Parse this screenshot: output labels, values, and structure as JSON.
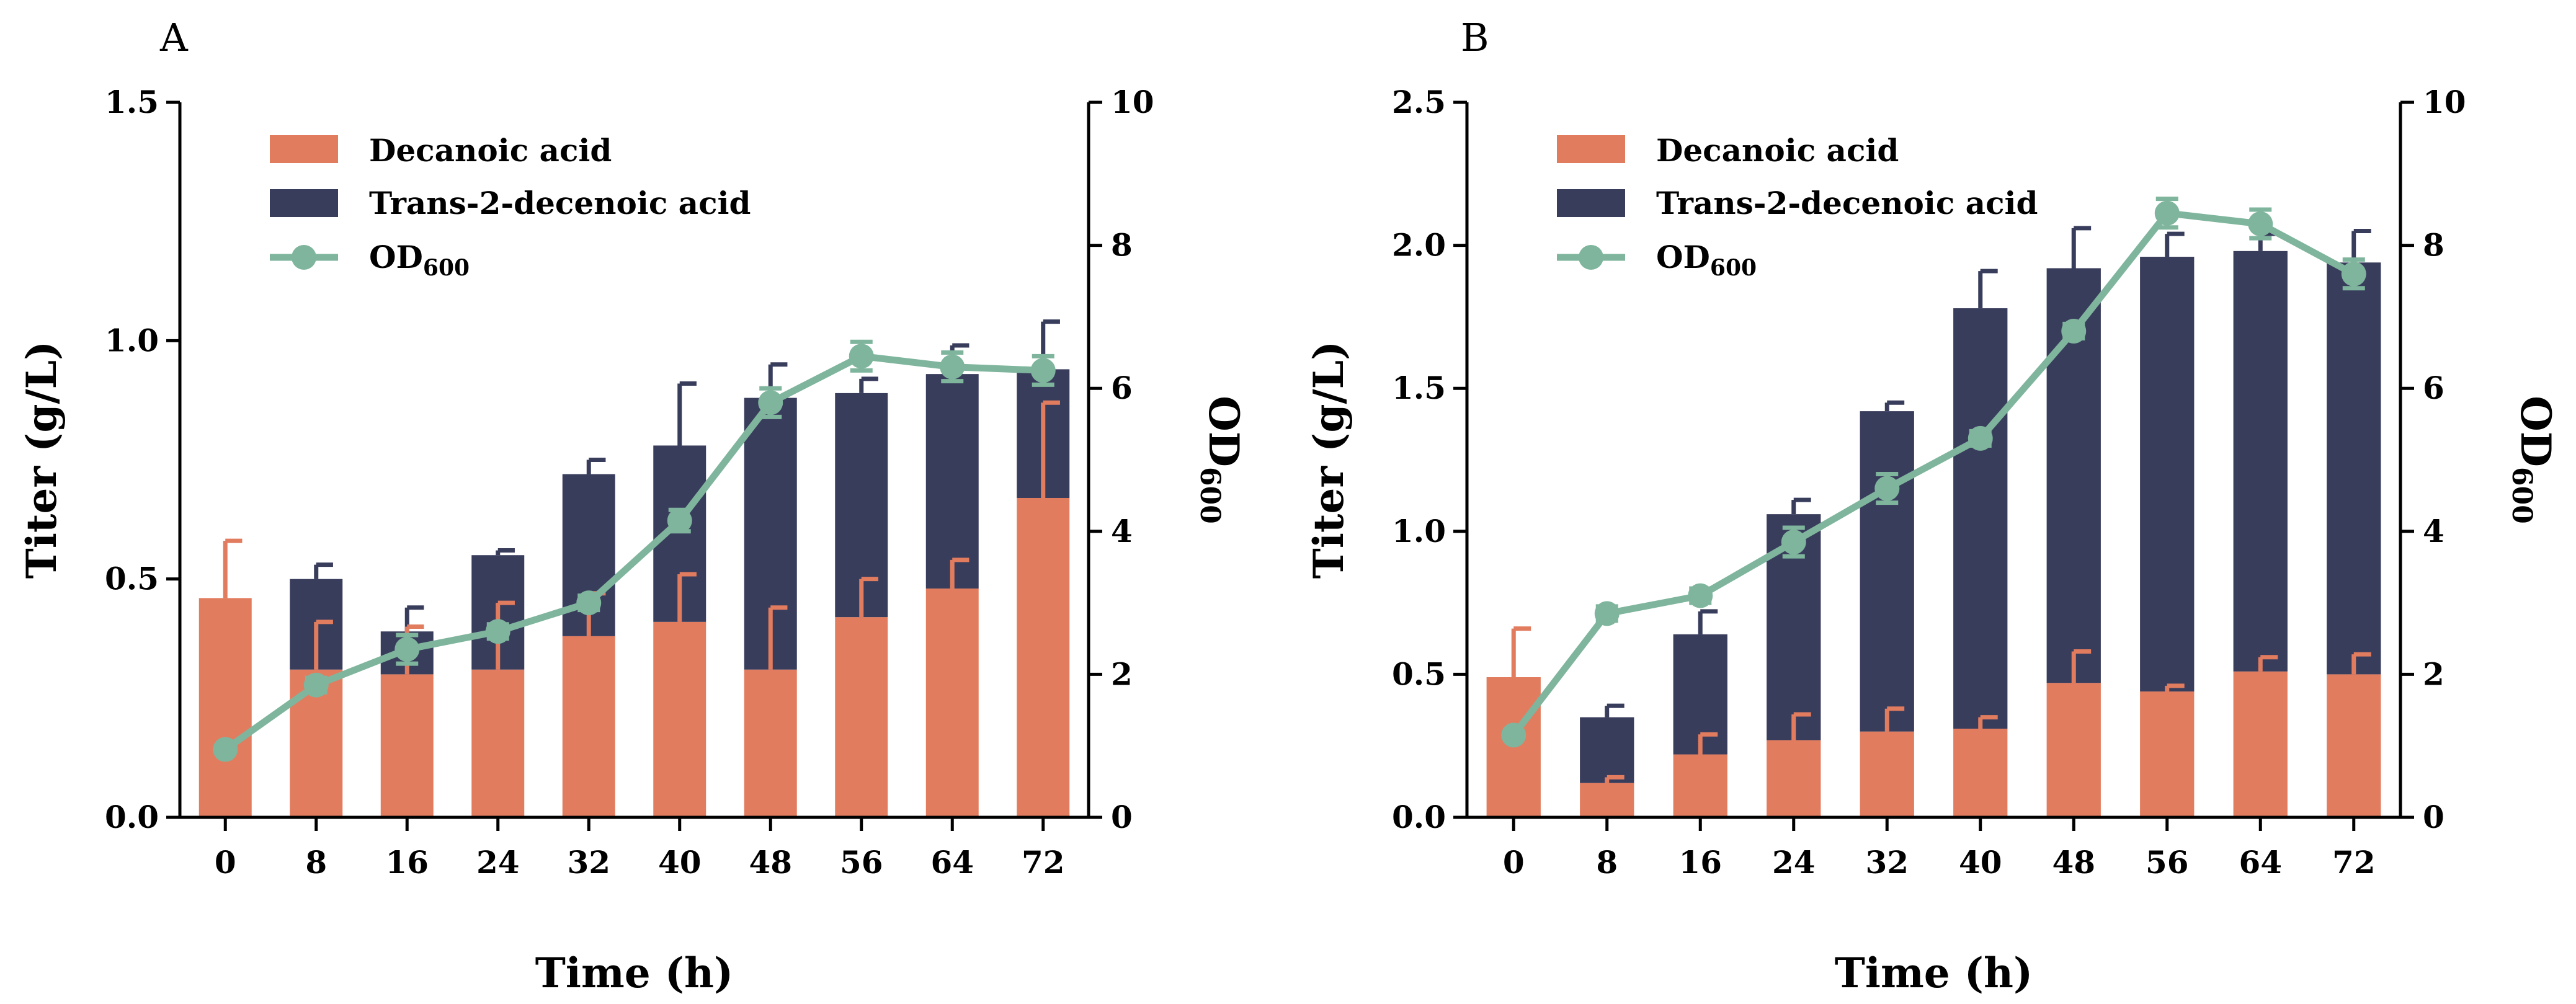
{
  "chart_data": [
    {
      "type": "bar",
      "panel_label": "A",
      "stacked": true,
      "categories": [
        "0",
        "8",
        "16",
        "24",
        "32",
        "40",
        "48",
        "56",
        "64",
        "72"
      ],
      "xlabel": "Time (h)",
      "ylabel": "Titer (g/L)",
      "y2label": "OD",
      "y2label_sub": "600",
      "ylim": [
        0,
        1.5
      ],
      "yticks": [
        "0.0",
        "0.5",
        "1.0",
        "1.5"
      ],
      "ytick_values": [
        0,
        0.5,
        1.0,
        1.5
      ],
      "y2lim": [
        0,
        10
      ],
      "y2ticks": [
        "0",
        "2",
        "4",
        "6",
        "8",
        "10"
      ],
      "y2tick_values": [
        0,
        2,
        4,
        6,
        8,
        10
      ],
      "series": [
        {
          "name": "Decanoic acid",
          "color": "#e27c5f",
          "values": [
            0.46,
            0.31,
            0.3,
            0.31,
            0.38,
            0.41,
            0.31,
            0.42,
            0.48,
            0.67
          ],
          "errors": [
            0.12,
            0.1,
            0.1,
            0.14,
            0.09,
            0.1,
            0.13,
            0.08,
            0.06,
            0.2
          ]
        },
        {
          "name": "Trans-2-decenoic acid",
          "color": "#393d5c",
          "values": [
            0,
            0.19,
            0.09,
            0.24,
            0.34,
            0.37,
            0.57,
            0.47,
            0.45,
            0.27
          ],
          "errors": [
            0,
            0.03,
            0.05,
            0.01,
            0.03,
            0.13,
            0.07,
            0.03,
            0.06,
            0.1
          ]
        },
        {
          "name": "OD",
          "name_sub": "600",
          "type": "line",
          "axis": "right",
          "color": "#7fb59d",
          "values": [
            0.95,
            1.85,
            2.35,
            2.6,
            3.0,
            4.15,
            5.8,
            6.45,
            6.3,
            6.25
          ],
          "errors": [
            0,
            0.1,
            0.2,
            0.1,
            0.1,
            0.15,
            0.2,
            0.2,
            0.2,
            0.2
          ]
        }
      ]
    },
    {
      "type": "bar",
      "panel_label": "B",
      "stacked": true,
      "categories": [
        "0",
        "8",
        "16",
        "24",
        "32",
        "40",
        "48",
        "56",
        "64",
        "72"
      ],
      "xlabel": "Time (h)",
      "ylabel": "Titer (g/L)",
      "y2label": "OD",
      "y2label_sub": "600",
      "ylim": [
        0,
        2.5
      ],
      "yticks": [
        "0.0",
        "0.5",
        "1.0",
        "1.5",
        "2.0",
        "2.5"
      ],
      "ytick_values": [
        0,
        0.5,
        1.0,
        1.5,
        2.0,
        2.5
      ],
      "y2lim": [
        0,
        10
      ],
      "y2ticks": [
        "0",
        "2",
        "4",
        "6",
        "8",
        "10"
      ],
      "y2tick_values": [
        0,
        2,
        4,
        6,
        8,
        10
      ],
      "series": [
        {
          "name": "Decanoic acid",
          "color": "#e27c5f",
          "values": [
            0.49,
            0.12,
            0.22,
            0.27,
            0.3,
            0.31,
            0.47,
            0.44,
            0.51,
            0.5
          ],
          "errors": [
            0.17,
            0.02,
            0.07,
            0.09,
            0.08,
            0.04,
            0.11,
            0.02,
            0.05,
            0.07
          ]
        },
        {
          "name": "Trans-2-decenoic acid",
          "color": "#393d5c",
          "values": [
            0,
            0.23,
            0.42,
            0.79,
            1.12,
            1.47,
            1.45,
            1.52,
            1.47,
            1.44
          ],
          "errors": [
            0,
            0.04,
            0.08,
            0.05,
            0.03,
            0.13,
            0.14,
            0.08,
            0.06,
            0.11
          ]
        },
        {
          "name": "OD",
          "name_sub": "600",
          "type": "line",
          "axis": "right",
          "color": "#7fb59d",
          "values": [
            1.15,
            2.85,
            3.1,
            3.85,
            4.6,
            5.3,
            6.8,
            8.45,
            8.3,
            7.6
          ],
          "errors": [
            0,
            0.1,
            0.1,
            0.2,
            0.2,
            0.1,
            0.1,
            0.2,
            0.2,
            0.2
          ]
        }
      ]
    }
  ]
}
